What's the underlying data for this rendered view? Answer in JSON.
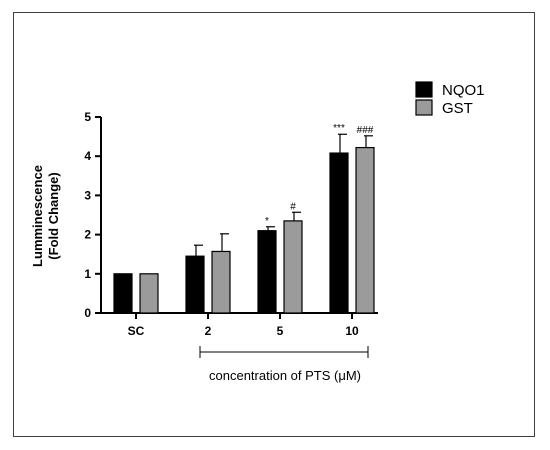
{
  "chart_data": {
    "type": "bar",
    "categories": [
      "SC",
      "2",
      "5",
      "10"
    ],
    "series": [
      {
        "name": "NQO1",
        "color": "#000000",
        "values": [
          1.0,
          1.45,
          2.1,
          4.08
        ],
        "errors": [
          0,
          0.28,
          0.1,
          0.48
        ],
        "significance": [
          "",
          "",
          "*",
          "***"
        ]
      },
      {
        "name": "GST",
        "color": "#9b9b9b",
        "values": [
          1.0,
          1.57,
          2.35,
          4.22
        ],
        "errors": [
          0,
          0.45,
          0.22,
          0.3
        ],
        "significance": [
          "",
          "",
          "#",
          "###"
        ]
      }
    ],
    "ylabel_line1": "Lumminescence",
    "ylabel_line2": "(Fold Change)",
    "xlabel": "concentration of PTS (μM)",
    "ylim": [
      0,
      5
    ],
    "yticks": [
      "0",
      "1",
      "2",
      "3",
      "4",
      "5"
    ],
    "grid": false,
    "legend_position": "top-right"
  }
}
